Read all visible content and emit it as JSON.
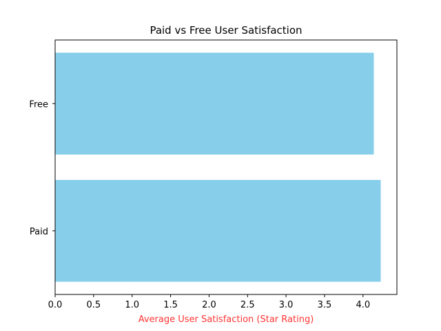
{
  "chart_data": {
    "type": "bar",
    "orientation": "horizontal",
    "title": "Paid vs Free User Satisfaction",
    "xlabel": "Average User Satisfaction (Star Rating)",
    "ylabel": "",
    "categories": [
      "Paid",
      "Free"
    ],
    "values": [
      4.23,
      4.14
    ],
    "xlim": [
      0,
      4.44
    ],
    "xticks": [
      "0.0",
      "0.5",
      "1.0",
      "1.5",
      "2.0",
      "2.5",
      "3.0",
      "3.5",
      "4.0"
    ],
    "grid": false,
    "legend": "none",
    "colors": {
      "bar": "#87ceeb",
      "xlabel": "#ff3333",
      "axis": "#000000"
    }
  }
}
